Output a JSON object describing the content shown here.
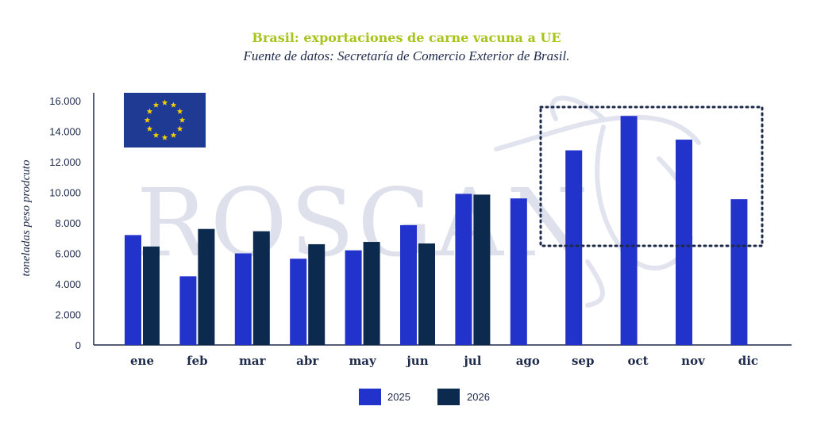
{
  "colors": {
    "series_2025": "#2233cc",
    "series_2026": "#0b2a4e",
    "title": "#a9c31d",
    "axis": "#1e2a4a",
    "flag": "#1f3a93",
    "flag_stars": "#f5d000",
    "highlight_box": "#1e2a4a"
  },
  "watermark": {
    "text": "ROSGAN",
    "icon": "bull-head-logo"
  },
  "flag_icon": "eu-flag-icon",
  "chart_data": {
    "type": "bar",
    "title": "Brasil: exportaciones de carne vacuna a UE",
    "subtitle": "Fuente de datos: Secretaría de Comercio Exterior de Brasil.",
    "xlabel": "",
    "ylabel": "toneladas peso prodcuto",
    "ylim": [
      0,
      16000
    ],
    "yticks": [
      {
        "value": 0,
        "label": "0"
      },
      {
        "value": 2000,
        "label": "2.000"
      },
      {
        "value": 4000,
        "label": "4.000"
      },
      {
        "value": 6000,
        "label": "6.000"
      },
      {
        "value": 8000,
        "label": "8.000"
      },
      {
        "value": 10000,
        "label": "10.000"
      },
      {
        "value": 12000,
        "label": "12.000"
      },
      {
        "value": 14000,
        "label": "14.000"
      },
      {
        "value": 16000,
        "label": "16.000"
      }
    ],
    "grid": false,
    "legend_position": "bottom-center",
    "categories": [
      "ene",
      "feb",
      "mar",
      "abr",
      "may",
      "jun",
      "jul",
      "ago",
      "sep",
      "oct",
      "nov",
      "dic"
    ],
    "series": [
      {
        "name": "2025",
        "values": [
          7200,
          4500,
          6000,
          5650,
          6200,
          7850,
          9900,
          9600,
          12750,
          15000,
          13450,
          9550
        ]
      },
      {
        "name": "2026",
        "values": [
          6450,
          7600,
          7450,
          6600,
          6750,
          6650,
          9850,
          null,
          null,
          null,
          null,
          null
        ]
      }
    ],
    "highlight": {
      "categories": [
        "sep",
        "oct",
        "nov",
        "dic"
      ],
      "style": "dotted-box"
    }
  }
}
